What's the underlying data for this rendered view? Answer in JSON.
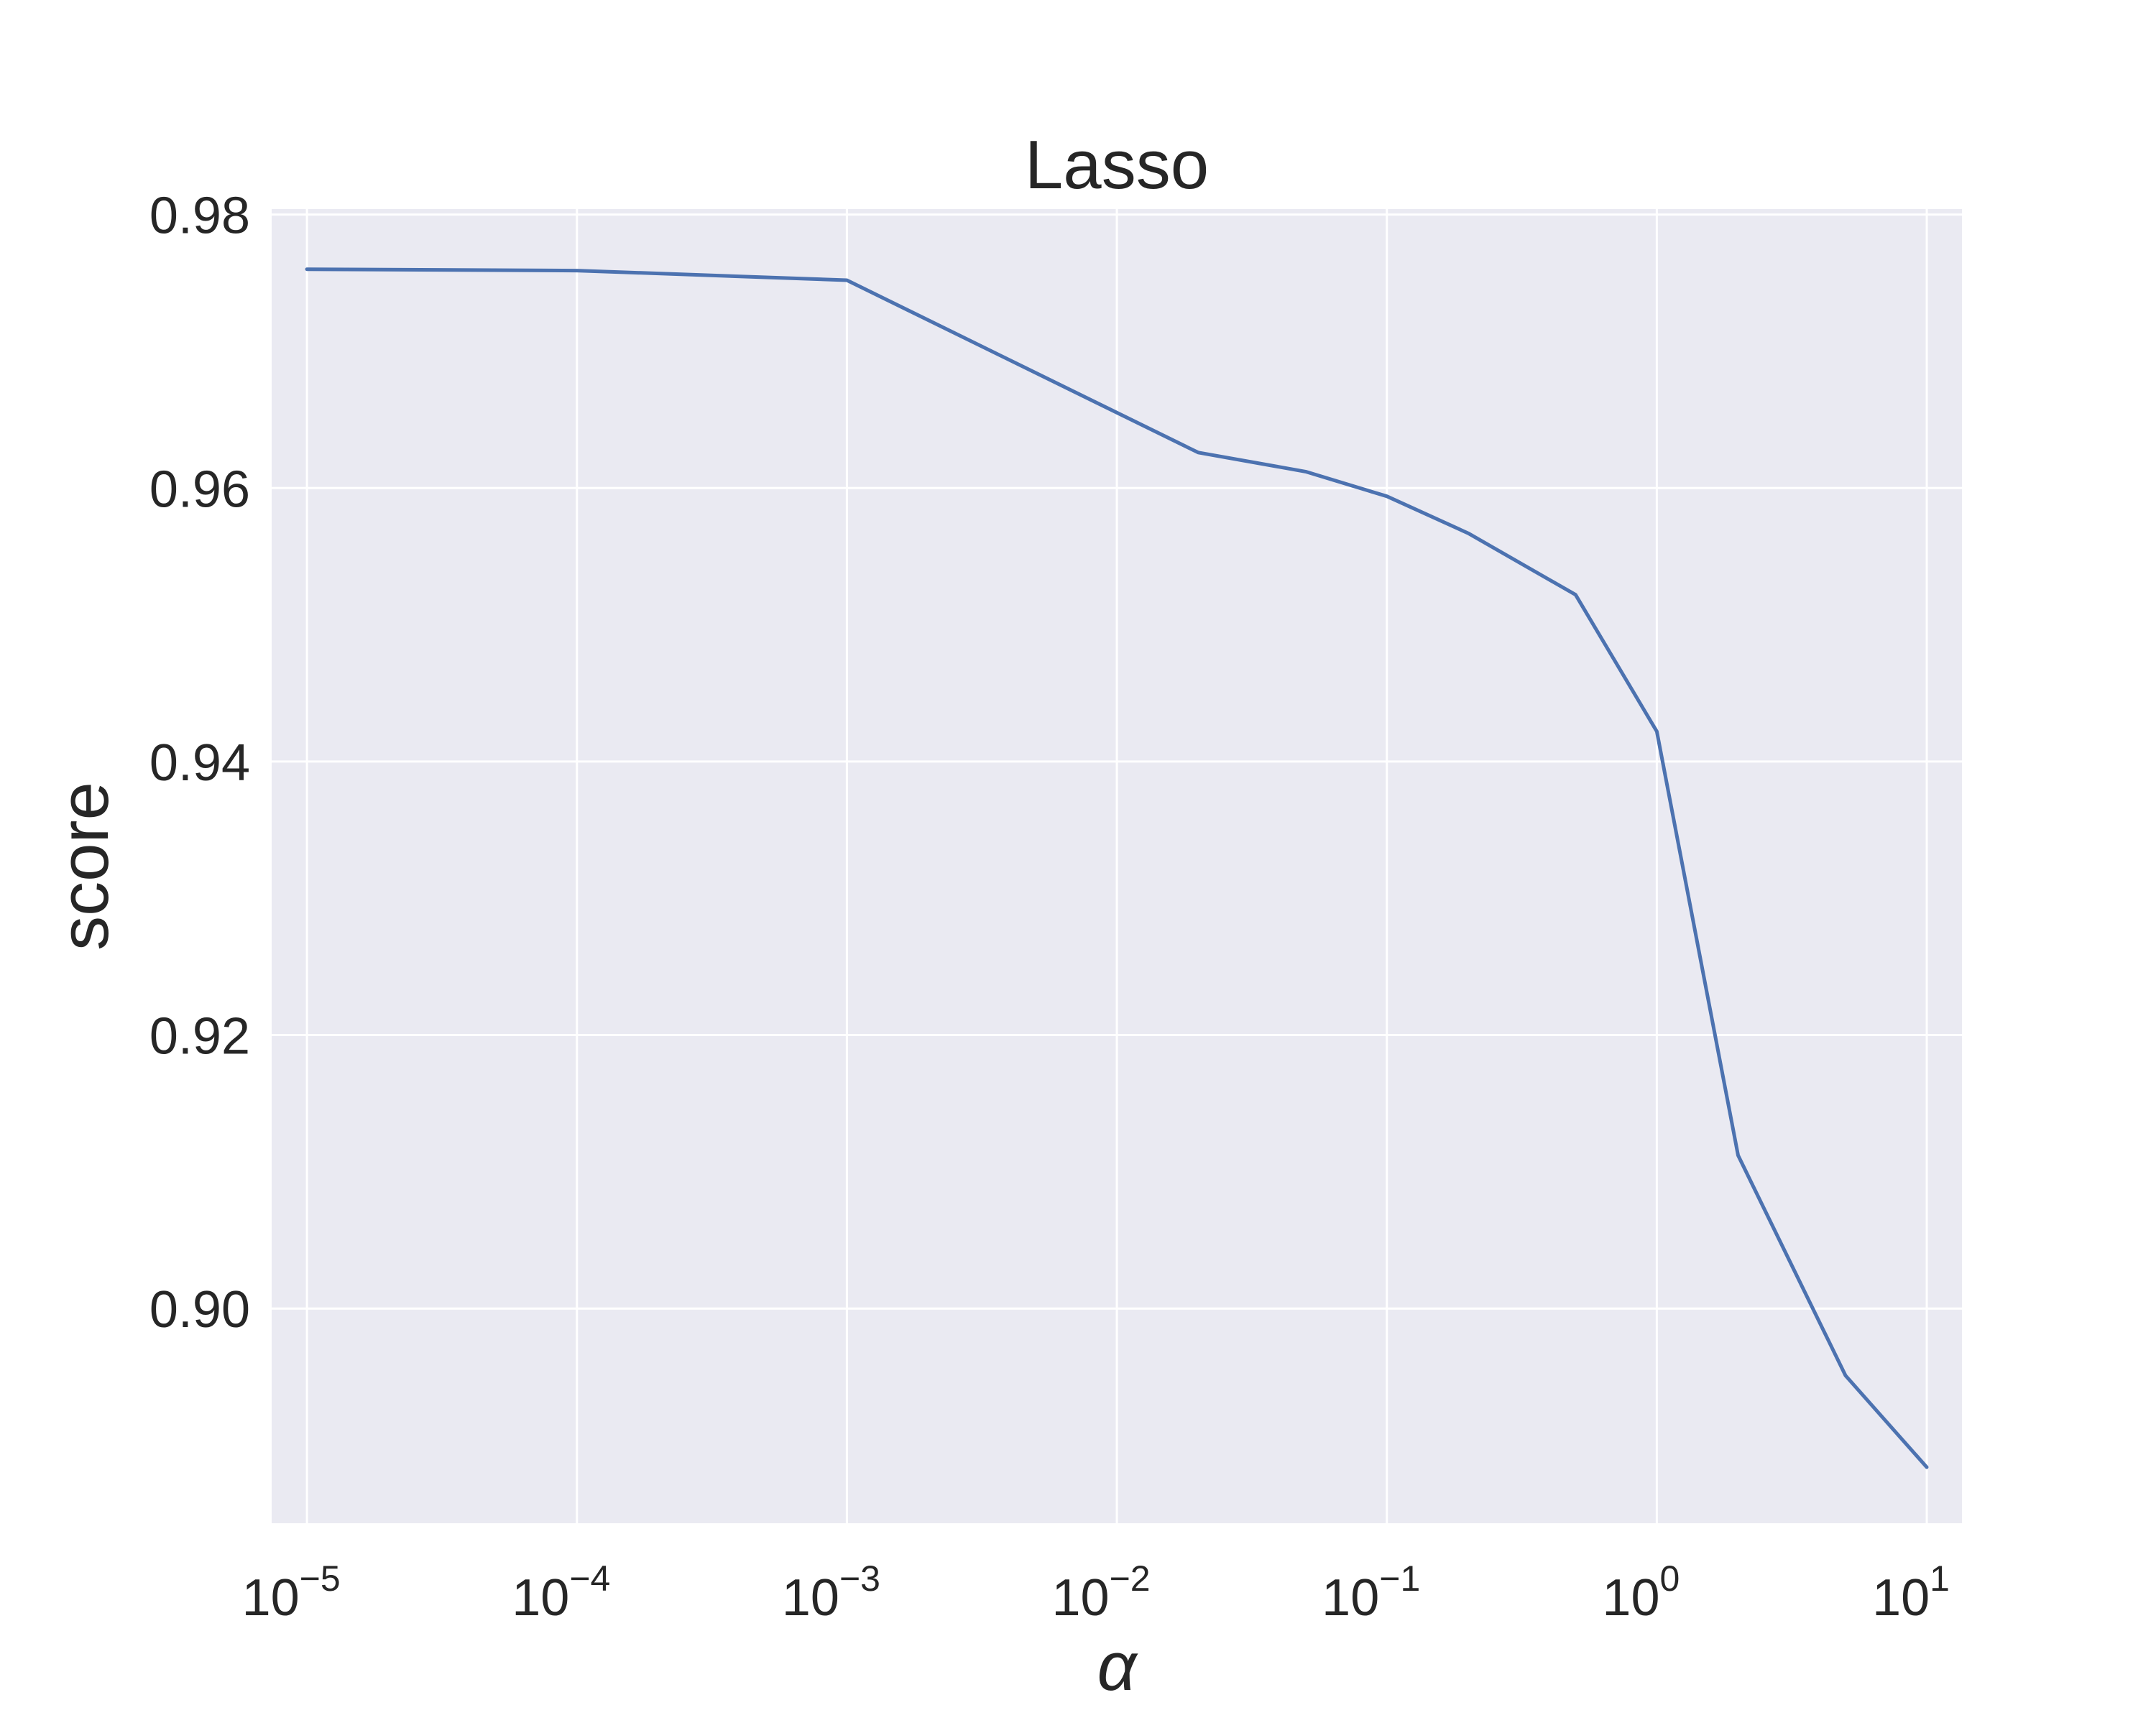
{
  "chart_data": {
    "type": "line",
    "title": "Lasso",
    "xlabel": "α",
    "ylabel": "score",
    "xscale": "log",
    "xlim": [
      7.4e-06,
      13.5
    ],
    "ylim": [
      0.8843,
      0.9804
    ],
    "grid": true,
    "x_ticks": [
      {
        "value": 1e-05,
        "base": "10",
        "exp": "−5"
      },
      {
        "value": 0.0001,
        "base": "10",
        "exp": "−4"
      },
      {
        "value": 0.001,
        "base": "10",
        "exp": "−3"
      },
      {
        "value": 0.01,
        "base": "10",
        "exp": "−2"
      },
      {
        "value": 0.1,
        "base": "10",
        "exp": "−1"
      },
      {
        "value": 1,
        "base": "10",
        "exp": "0"
      },
      {
        "value": 10,
        "base": "10",
        "exp": "1"
      }
    ],
    "y_ticks": [
      {
        "value": 0.9,
        "label": "0.90"
      },
      {
        "value": 0.92,
        "label": "0.92"
      },
      {
        "value": 0.94,
        "label": "0.94"
      },
      {
        "value": 0.96,
        "label": "0.96"
      },
      {
        "value": 0.98,
        "label": "0.98"
      }
    ],
    "series": [
      {
        "color": "#4c72b0",
        "x": [
          1e-05,
          0.0001,
          0.001,
          0.02,
          0.05,
          0.1,
          0.2,
          0.5,
          1,
          2,
          5,
          10
        ],
        "y": [
          0.976,
          0.9759,
          0.9752,
          0.9626,
          0.9612,
          0.9594,
          0.9567,
          0.9522,
          0.9422,
          0.9112,
          0.8951,
          0.8884
        ]
      }
    ],
    "style": {
      "plot_background": "#eaeaf2",
      "grid_color": "#ffffff"
    }
  }
}
